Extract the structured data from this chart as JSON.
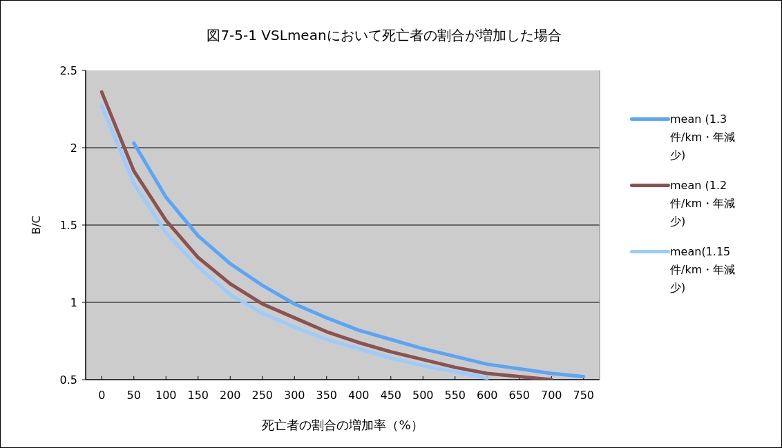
{
  "chart_data": {
    "type": "line",
    "title": "図7-5-1 VSLmeanにおいて死亡者の割合が増加した場合",
    "xlabel": "死亡者の割合の増加率（%）",
    "ylabel": "B/C",
    "categories": [
      "0",
      "50",
      "100",
      "150",
      "200",
      "250",
      "300",
      "350",
      "400",
      "450",
      "500",
      "550",
      "600",
      "650",
      "700",
      "750"
    ],
    "series": [
      {
        "name": "mean (1.3件/km・年減少)",
        "color": "#5aa5f8",
        "values": [
          null,
          2.03,
          1.68,
          1.43,
          1.25,
          1.11,
          0.99,
          0.9,
          0.82,
          0.76,
          0.7,
          0.65,
          0.6,
          0.57,
          0.54,
          0.52
        ]
      },
      {
        "name": "mean (1.2件/km・年減少)",
        "color": "#8b5252",
        "values": [
          2.36,
          1.85,
          1.53,
          1.29,
          1.12,
          0.99,
          0.9,
          0.81,
          0.74,
          0.68,
          0.63,
          0.58,
          0.54,
          0.52,
          0.5,
          null
        ]
      },
      {
        "name": "mean(1.15件/km・年減少)",
        "color": "#99ccff",
        "values": [
          2.27,
          1.77,
          1.45,
          1.23,
          1.05,
          0.93,
          0.84,
          0.76,
          0.7,
          0.64,
          0.59,
          0.55,
          0.51,
          null,
          null,
          null
        ]
      }
    ],
    "ylim": [
      0.5,
      2.5
    ],
    "yticks": [
      0.5,
      1,
      1.5,
      2,
      2.5
    ],
    "grid": "y",
    "legend": "right",
    "line_style": "solid",
    "marker": "none"
  }
}
